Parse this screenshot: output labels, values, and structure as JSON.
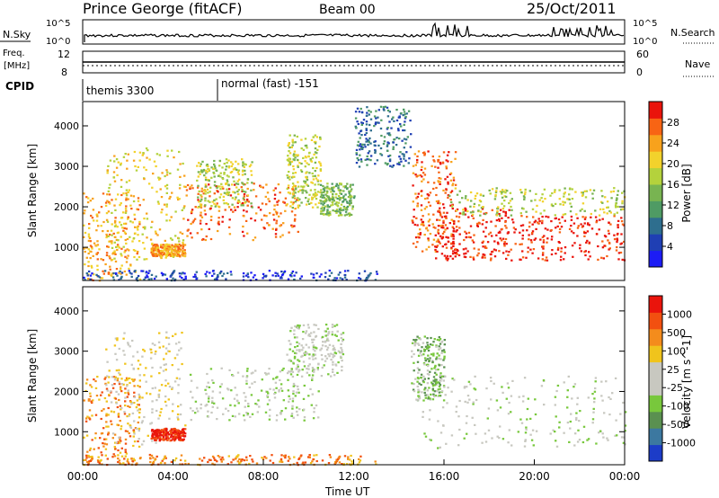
{
  "header": {
    "station": "Prince George (fitACF)",
    "beam": "Beam 00",
    "date": "25/Oct/2011"
  },
  "top_panels": {
    "nsky_label": "N.Sky",
    "nsearch_label": "N.Search",
    "nsky_ticks": [
      "10^5",
      "10^0"
    ],
    "nsearch_ticks": [
      "10^5",
      "10^0"
    ],
    "freq_label_1": "Freq.",
    "freq_label_2": "[MHz]",
    "freq_ticks": [
      "12",
      "8"
    ],
    "nave_label": "Nave",
    "nave_ticks": [
      "60",
      "0"
    ],
    "cpid_label": "CPID",
    "cpid_segments": [
      {
        "label": "themis 3300",
        "start": 0.8
      },
      {
        "label": "normal (fast) -151",
        "start": 6.0
      }
    ]
  },
  "chart_data": [
    {
      "type": "heatmap",
      "name": "power",
      "ylabel": "Slant Range [km]",
      "y_ticks": [
        1000,
        2000,
        3000,
        4000
      ],
      "ylim": [
        180,
        4600
      ],
      "xlim": [
        0,
        24
      ],
      "colorbar": {
        "label": "Power [dB]",
        "ticks": [
          "4",
          "8",
          "12",
          "16",
          "20",
          "24",
          "28"
        ],
        "colors": [
          "#1c1cf5",
          "#1f3fb4",
          "#2e6e8e",
          "#4f9b64",
          "#78b451",
          "#b4d23c",
          "#f2d22c",
          "#f8a21c",
          "#f86414",
          "#ea140c"
        ]
      },
      "features": [
        {
          "t0": 0.0,
          "t1": 2.5,
          "r0": 200,
          "r1": 2400,
          "level": 7
        },
        {
          "t0": 1.0,
          "t1": 4.5,
          "r0": 700,
          "r1": 3500,
          "level": 6
        },
        {
          "t0": 3.0,
          "t1": 4.5,
          "r0": 800,
          "r1": 1100,
          "level": 7
        },
        {
          "t0": 4.5,
          "t1": 9.5,
          "r0": 1200,
          "r1": 2600,
          "level": 8
        },
        {
          "t0": 5.0,
          "t1": 7.5,
          "r0": 2000,
          "r1": 3200,
          "level": 5
        },
        {
          "t0": 9.0,
          "t1": 10.5,
          "r0": 2000,
          "r1": 3800,
          "level": 5
        },
        {
          "t0": 10.5,
          "t1": 12.0,
          "r0": 1800,
          "r1": 2600,
          "level": 4
        },
        {
          "t0": 12.0,
          "t1": 14.5,
          "r0": 3000,
          "r1": 4500,
          "level": 2
        },
        {
          "t0": 14.5,
          "t1": 16.5,
          "r0": 900,
          "r1": 3400,
          "level": 8
        },
        {
          "t0": 15.5,
          "t1": 19.0,
          "r0": 700,
          "r1": 2000,
          "level": 9
        },
        {
          "t0": 19.0,
          "t1": 24.0,
          "r0": 700,
          "r1": 1800,
          "level": 9
        },
        {
          "t0": 16.0,
          "t1": 24.0,
          "r0": 1800,
          "r1": 2500,
          "level": 5
        },
        {
          "t0": 0.0,
          "t1": 13.0,
          "r0": 200,
          "r1": 450,
          "level": 1
        }
      ]
    },
    {
      "type": "heatmap",
      "name": "velocity",
      "ylabel": "Slant Range [km]",
      "y_ticks": [
        1000,
        2000,
        3000,
        4000
      ],
      "ylim": [
        180,
        4600
      ],
      "xlim": [
        0,
        24
      ],
      "colorbar": {
        "label": "Velocity [m s^-1]",
        "ticks": [
          "1000",
          "500",
          "100",
          "25",
          "-25",
          "-100",
          "-500",
          "-1000"
        ],
        "colors": [
          "#1c3cc8",
          "#3c78a0",
          "#5a9050",
          "#78c83c",
          "#c8c8c0",
          "#c8c8c0",
          "#f0c41c",
          "#f48c1c",
          "#f25010",
          "#ea140c"
        ]
      },
      "features": [
        {
          "t0": 0.0,
          "t1": 2.5,
          "r0": 200,
          "r1": 2400,
          "level": 7
        },
        {
          "t0": 1.0,
          "t1": 4.5,
          "r0": 700,
          "r1": 3500,
          "level": 5
        },
        {
          "t0": 3.0,
          "t1": 4.5,
          "r0": 800,
          "r1": 1100,
          "level": 9
        },
        {
          "t0": 4.5,
          "t1": 10.5,
          "r0": 1300,
          "r1": 2600,
          "level": 4
        },
        {
          "t0": 9.0,
          "t1": 11.5,
          "r0": 2400,
          "r1": 3700,
          "level": 4
        },
        {
          "t0": 14.5,
          "t1": 16.0,
          "r0": 1800,
          "r1": 3400,
          "level": 3
        },
        {
          "t0": 15.0,
          "t1": 24.0,
          "r0": 600,
          "r1": 2400,
          "level": 4
        },
        {
          "t0": 0.0,
          "t1": 13.0,
          "r0": 200,
          "r1": 450,
          "level": 7
        }
      ]
    }
  ],
  "xaxis": {
    "ticks": [
      "00:00",
      "04:00",
      "08:00",
      "12:00",
      "16:00",
      "20:00",
      "00:00"
    ],
    "label": "Time UT"
  }
}
